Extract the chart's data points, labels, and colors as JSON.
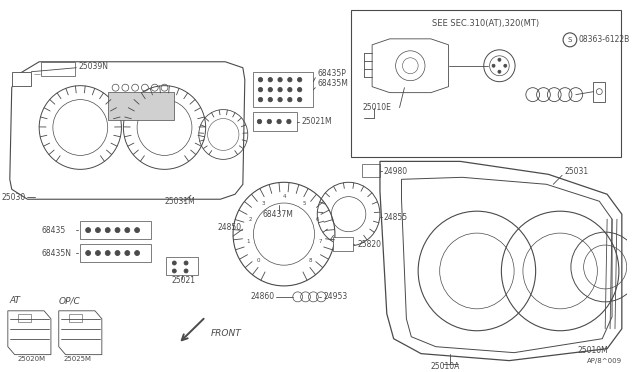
{
  "bg_color": "#ffffff",
  "lc": "#4a4a4a",
  "lw": 0.6,
  "fig_w": 6.4,
  "fig_h": 3.72,
  "dpi": 100,
  "part_ref": "AP/8^009",
  "see_sec": "SEE SEC.310(AT),320(MT)",
  "screw_ref": "08363-6122B"
}
